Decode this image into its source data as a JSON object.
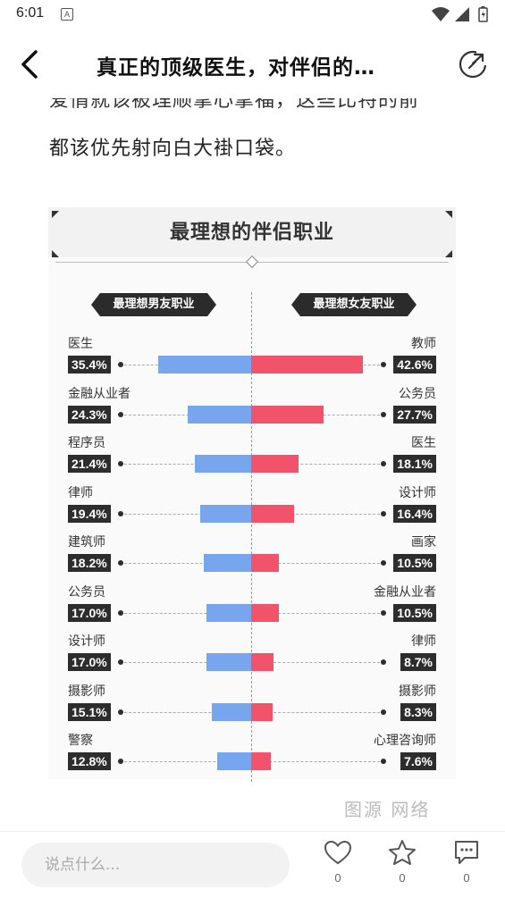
{
  "status_bar": {
    "time": "6:01",
    "notification_glyph": "A"
  },
  "header": {
    "title": "真正的顶级医生，对伴侣的…"
  },
  "article": {
    "partial_line": "爱情就该被理顺掌心掌福，这些比特的前",
    "paragraph": "都该优先射向白大褂口袋。",
    "faded_text": "图源 网络"
  },
  "infographic": {
    "title": "最理想的伴侣职业",
    "left_header": "最理想男友职业",
    "right_header": "最理想女友职业"
  },
  "chart_data": {
    "type": "bar",
    "title": "最理想的伴侣职业",
    "series": [
      {
        "name": "最理想男友职业",
        "categories": [
          "医生",
          "金融从业者",
          "程序员",
          "律师",
          "建筑师",
          "公务员",
          "设计师",
          "摄影师",
          "警察"
        ],
        "values": [
          35.4,
          24.3,
          21.4,
          19.4,
          18.2,
          17.0,
          17.0,
          15.1,
          12.8
        ],
        "labels": [
          "35.4%",
          "24.3%",
          "21.4%",
          "19.4%",
          "18.2%",
          "17.0%",
          "17.0%",
          "15.1%",
          "12.8%"
        ],
        "color": "#78a6ee"
      },
      {
        "name": "最理想女友职业",
        "categories": [
          "教师",
          "公务员",
          "医生",
          "设计师",
          "画家",
          "金融从业者",
          "律师",
          "摄影师",
          "心理咨询师"
        ],
        "values": [
          42.6,
          27.7,
          18.1,
          16.4,
          10.5,
          10.5,
          8.7,
          8.3,
          7.6
        ],
        "labels": [
          "42.6%",
          "27.7%",
          "18.1%",
          "16.4%",
          "10.5%",
          "10.5%",
          "8.7%",
          "8.3%",
          "7.6%"
        ],
        "color": "#f0536a"
      }
    ]
  },
  "bottom_bar": {
    "comment_placeholder": "说点什么...",
    "like_count": "0",
    "favorite_count": "0",
    "comment_count": "0"
  }
}
